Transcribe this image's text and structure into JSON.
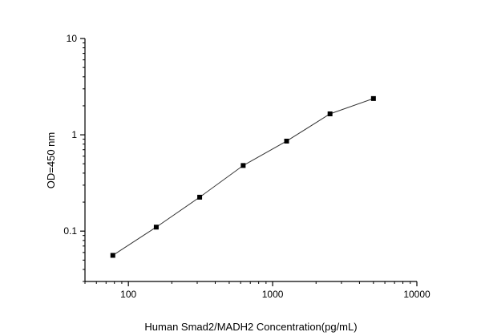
{
  "chart_data": {
    "type": "scatter",
    "xlabel": "Human Smad2/MADH2 Concentration(pg/mL)",
    "ylabel": "OD=450 nm",
    "x_scale": "log",
    "y_scale": "log",
    "xlim": [
      50,
      10000
    ],
    "ylim": [
      0.03,
      10
    ],
    "x_ticks": [
      {
        "value": 100,
        "label": "100"
      },
      {
        "value": 1000,
        "label": "1000"
      },
      {
        "value": 10000,
        "label": "10000"
      }
    ],
    "y_ticks": [
      {
        "value": 0.1,
        "label": "0.1"
      },
      {
        "value": 1,
        "label": "1"
      },
      {
        "value": 10,
        "label": "10"
      }
    ],
    "grid": false,
    "legend": "none",
    "series": [
      {
        "color": "#000000",
        "line_color": "#333333",
        "marker": "square",
        "connected": true,
        "x": [
          78,
          156,
          312,
          625,
          1250,
          2500,
          5000
        ],
        "y": [
          0.056,
          0.11,
          0.225,
          0.48,
          0.86,
          1.65,
          2.38
        ]
      }
    ]
  }
}
